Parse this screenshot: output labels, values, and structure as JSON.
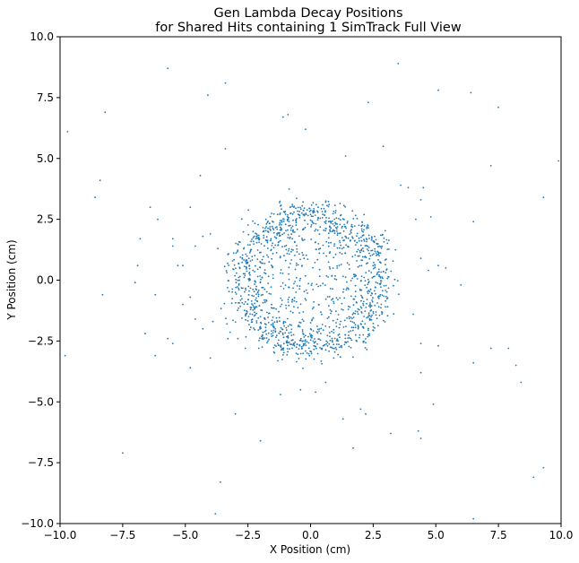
{
  "chart_data": {
    "type": "scatter",
    "title": [
      "Gen Lambda Decay Positions",
      "for Shared Hits containing 1 SimTrack Full View"
    ],
    "xlabel": "X Position (cm)",
    "ylabel": "Y Position (cm)",
    "xlim": [
      -10,
      10
    ],
    "ylim": [
      -10,
      10
    ],
    "xticks": [
      -10,
      -7.5,
      -5,
      -2.5,
      0,
      2.5,
      5,
      7.5,
      10
    ],
    "yticks": [
      -10,
      -7.5,
      -5,
      -2.5,
      0,
      2.5,
      5,
      7.5,
      10
    ],
    "xtick_labels": [
      "−10.0",
      "−7.5",
      "−5.0",
      "−2.5",
      "0.0",
      "2.5",
      "5.0",
      "7.5",
      "10.0"
    ],
    "ytick_labels": [
      "−10.0",
      "−7.5",
      "−5.0",
      "−2.5",
      "0.0",
      "2.5",
      "5.0",
      "7.5",
      "10.0"
    ],
    "grid": false,
    "marker_color": "#1f77b4",
    "points": [
      [
        -5.7,
        8.7
      ],
      [
        -4.1,
        7.6
      ],
      [
        -3.4,
        8.1
      ],
      [
        3.5,
        8.9
      ],
      [
        5.1,
        7.8
      ],
      [
        6.4,
        7.7
      ],
      [
        7.5,
        7.1
      ],
      [
        -9.7,
        6.1
      ],
      [
        -8.2,
        6.9
      ],
      [
        -1.1,
        6.7
      ],
      [
        -0.9,
        6.8
      ],
      [
        -0.2,
        6.2
      ],
      [
        2.3,
        7.3
      ],
      [
        -3.4,
        5.4
      ],
      [
        2.9,
        5.5
      ],
      [
        1.4,
        5.1
      ],
      [
        7.2,
        4.7
      ],
      [
        9.9,
        4.9
      ],
      [
        -8.4,
        4.1
      ],
      [
        -8.6,
        3.4
      ],
      [
        -4.4,
        4.3
      ],
      [
        -4.8,
        3.0
      ],
      [
        -6.4,
        3.0
      ],
      [
        -6.1,
        2.5
      ],
      [
        9.3,
        3.4
      ],
      [
        -8.3,
        -0.6
      ],
      [
        -7.0,
        -0.1
      ],
      [
        -6.8,
        1.7
      ],
      [
        -6.9,
        0.6
      ],
      [
        -5.5,
        1.7
      ],
      [
        -5.5,
        1.4
      ],
      [
        -5.3,
        0.6
      ],
      [
        -5.1,
        0.6
      ],
      [
        -4.6,
        1.4
      ],
      [
        -4.0,
        1.9
      ],
      [
        -4.3,
        1.8
      ],
      [
        -3.7,
        1.3
      ],
      [
        5.1,
        0.6
      ],
      [
        5.4,
        0.5
      ],
      [
        4.7,
        0.4
      ],
      [
        4.4,
        0.9
      ],
      [
        4.2,
        2.5
      ],
      [
        4.8,
        2.6
      ],
      [
        4.4,
        3.3
      ],
      [
        4.5,
        3.8
      ],
      [
        3.9,
        3.8
      ],
      [
        3.6,
        3.9
      ],
      [
        6.5,
        2.4
      ],
      [
        6.0,
        -0.2
      ],
      [
        -6.2,
        -0.6
      ],
      [
        -6.6,
        -2.2
      ],
      [
        -6.2,
        -3.1
      ],
      [
        -5.7,
        -2.4
      ],
      [
        -5.5,
        -2.6
      ],
      [
        -5.1,
        -1.0
      ],
      [
        -4.8,
        -0.7
      ],
      [
        -4.6,
        -1.6
      ],
      [
        -4.3,
        -2.0
      ],
      [
        -3.9,
        -1.7
      ],
      [
        -4.0,
        -3.2
      ],
      [
        -4.8,
        -3.6
      ],
      [
        -9.8,
        -3.1
      ],
      [
        -7.5,
        -7.1
      ],
      [
        -3.8,
        -9.6
      ],
      [
        -3.6,
        -8.3
      ],
      [
        -2.0,
        -6.6
      ],
      [
        -1.2,
        -4.7
      ],
      [
        -0.4,
        -4.5
      ],
      [
        0.2,
        -4.6
      ],
      [
        0.6,
        -4.2
      ],
      [
        1.3,
        -5.7
      ],
      [
        1.7,
        -6.9
      ],
      [
        2.0,
        -5.3
      ],
      [
        2.2,
        -5.5
      ],
      [
        3.2,
        -6.3
      ],
      [
        4.3,
        -6.2
      ],
      [
        4.4,
        -6.5
      ],
      [
        4.9,
        -5.1
      ],
      [
        4.4,
        -3.8
      ],
      [
        4.4,
        -2.6
      ],
      [
        5.1,
        -2.7
      ],
      [
        4.1,
        -1.4
      ],
      [
        6.5,
        -3.4
      ],
      [
        7.2,
        -2.8
      ],
      [
        7.9,
        -2.8
      ],
      [
        8.2,
        -3.5
      ],
      [
        8.4,
        -4.2
      ],
      [
        9.3,
        -7.7
      ],
      [
        8.9,
        -8.1
      ],
      [
        6.5,
        -9.8
      ],
      [
        -3.0,
        -5.5
      ],
      [
        -2.9,
        -2.4
      ],
      [
        -2.6,
        -2.8
      ],
      [
        -3.3,
        -2.4
      ]
    ],
    "ring_center": [
      0,
      0
    ],
    "ring_radius": 2.75,
    "ring_spread": 0.35,
    "ring_count": 1100,
    "inner_count": 380
  }
}
